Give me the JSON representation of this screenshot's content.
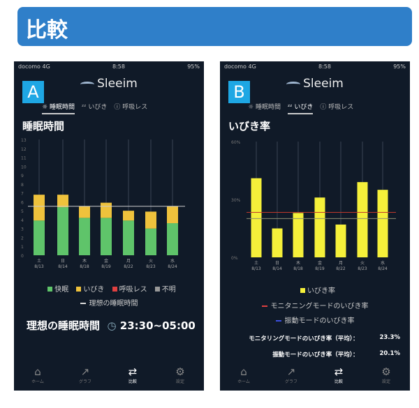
{
  "banner": {
    "title": "比較"
  },
  "status": {
    "carrier": "docomo 4G",
    "time": "8:58",
    "battery": "95%"
  },
  "logo": "Sleeim",
  "tabs": [
    "睡眠時間",
    "いびき",
    "呼吸レス"
  ],
  "nav": [
    "ホーム",
    "グラフ",
    "比較",
    "設定"
  ],
  "panelA": {
    "badge": "A",
    "title": "睡眠時間",
    "legend": [
      "快眠",
      "いびき",
      "呼吸レス",
      "不明"
    ],
    "legend_line": "理想の睡眠時間",
    "ideal_label": "理想の睡眠時間",
    "ideal_value": "23:30~05:00"
  },
  "panelB": {
    "badge": "B",
    "title": "いびき率",
    "legend": [
      "いびき率",
      "モニタニングモードのいびき率",
      "振動モードのいびき率"
    ],
    "avg": [
      {
        "label": "モニタリングモードのいびき率（平均）：",
        "value": "23.3%"
      },
      {
        "label": "振動モードのいびき率（平均）：",
        "value": "20.1%"
      }
    ]
  },
  "colors": {
    "good": "#5fc46a",
    "snore": "#efc23c",
    "apnea": "#e04040",
    "unknown": "#999999",
    "rate": "#f5f03a",
    "monitor": "#c0392b",
    "vibe": "#3b4fe0",
    "badge": "#1ea7e4",
    "banner": "#2f7fc9"
  },
  "chart_data": [
    {
      "type": "bar",
      "stacked": true,
      "categories": [
        "土 8/13",
        "日 8/14",
        "木 8/18",
        "金 8/19",
        "月 8/22",
        "火 8/23",
        "水 8/24"
      ],
      "series": [
        {
          "name": "快眠",
          "values": [
            3.9,
            5.4,
            4.2,
            4.2,
            3.9,
            3.0,
            3.6
          ]
        },
        {
          "name": "いびき",
          "values": [
            2.9,
            1.4,
            1.3,
            1.7,
            1.1,
            1.9,
            1.9
          ]
        }
      ],
      "ideal_line": 5.5,
      "ylim": [
        0,
        13
      ],
      "yticks": [
        0,
        1,
        2,
        3,
        4,
        5,
        6,
        7,
        8,
        9,
        10,
        11,
        12,
        13
      ]
    },
    {
      "type": "bar",
      "categories": [
        "土 8/13",
        "日 8/14",
        "木 8/18",
        "金 8/19",
        "月 8/22",
        "火 8/23",
        "水 8/24"
      ],
      "series": [
        {
          "name": "いびき率",
          "values": [
            41,
            15,
            23,
            31,
            17,
            39,
            35
          ]
        }
      ],
      "lines": [
        {
          "name": "モニタニングモードのいびき率",
          "value": 23.3
        },
        {
          "name": "振動モードのいびき率",
          "value": 20.1
        }
      ],
      "ylim": [
        0,
        60
      ],
      "yticks": [
        "0%",
        "30%",
        "60%"
      ]
    }
  ]
}
